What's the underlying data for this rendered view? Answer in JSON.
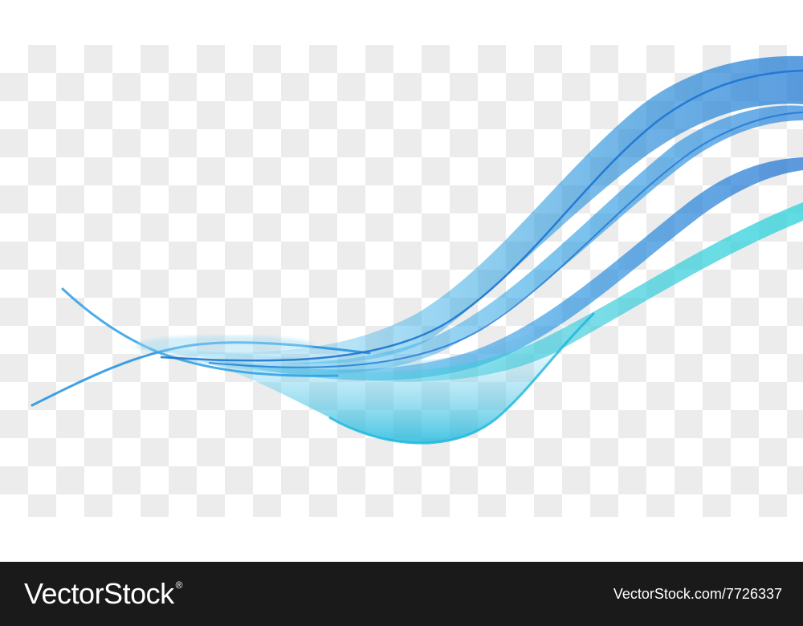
{
  "artwork": {
    "subject": "abstract-blue-wave",
    "background": "transparency-checkerboard",
    "colors": {
      "checker_light": "#ffffff",
      "checker_dark": "#ececec",
      "wave_dark": "#1a6fd0",
      "wave_mid": "#1e9be0",
      "wave_light": "#3fc4e6",
      "wave_cyan": "#2fd0d6"
    }
  },
  "footer": {
    "logo_text": "VectorStock",
    "logo_mark": "®",
    "image_id": "VectorStock.com/7726337",
    "background": "#1a1a1a"
  }
}
